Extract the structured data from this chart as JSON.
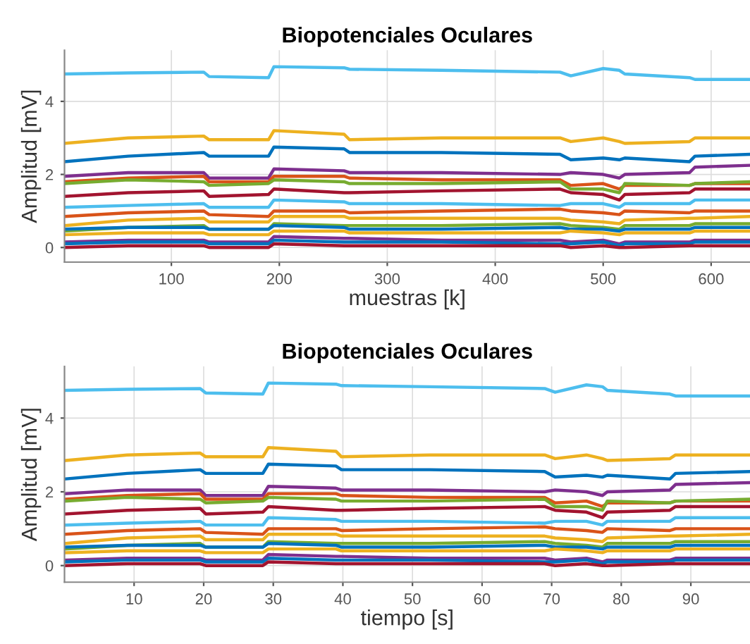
{
  "chart_data": [
    {
      "type": "line",
      "title": "Biopotenciales Oculares",
      "xlabel": "muestras [k]",
      "ylabel": "Amplitud [mV]",
      "xlim": [
        1,
        636
      ],
      "xticks": [
        100,
        200,
        300,
        400,
        500,
        600
      ],
      "ylim": [
        -0.4,
        5.4
      ],
      "yticks": [
        0,
        2,
        4
      ],
      "grid": true,
      "legend": false,
      "x": [
        1,
        60,
        130,
        135,
        190,
        195,
        260,
        265,
        350,
        460,
        470,
        500,
        515,
        520,
        580,
        585,
        636
      ],
      "series": [
        {
          "color": "#4dbeee",
          "values": [
            4.75,
            4.78,
            4.8,
            4.68,
            4.65,
            4.95,
            4.92,
            4.88,
            4.85,
            4.8,
            4.7,
            4.9,
            4.85,
            4.75,
            4.65,
            4.6,
            4.6
          ]
        },
        {
          "color": "#edb120",
          "values": [
            2.85,
            3.0,
            3.05,
            2.95,
            2.95,
            3.2,
            3.1,
            2.95,
            3.0,
            3.0,
            2.9,
            3.0,
            2.9,
            2.85,
            2.9,
            3.0,
            3.0
          ]
        },
        {
          "color": "#0072bd",
          "values": [
            2.35,
            2.5,
            2.6,
            2.5,
            2.5,
            2.75,
            2.7,
            2.6,
            2.6,
            2.55,
            2.4,
            2.45,
            2.4,
            2.45,
            2.35,
            2.5,
            2.55
          ]
        },
        {
          "color": "#7e2f8e",
          "values": [
            1.95,
            2.05,
            2.05,
            1.9,
            1.9,
            2.15,
            2.1,
            2.05,
            2.05,
            2.0,
            2.05,
            2.0,
            1.9,
            2.0,
            2.05,
            2.2,
            2.25
          ]
        },
        {
          "color": "#d95319",
          "values": [
            1.8,
            1.9,
            1.95,
            1.8,
            1.8,
            1.95,
            1.95,
            1.9,
            1.85,
            1.85,
            1.7,
            1.75,
            1.6,
            1.7,
            1.7,
            1.75,
            1.75
          ]
        },
        {
          "color": "#77ac30",
          "values": [
            1.75,
            1.85,
            1.8,
            1.7,
            1.75,
            1.85,
            1.8,
            1.75,
            1.75,
            1.8,
            1.6,
            1.6,
            1.5,
            1.75,
            1.7,
            1.75,
            1.8
          ]
        },
        {
          "color": "#a2142f",
          "values": [
            1.4,
            1.5,
            1.55,
            1.4,
            1.45,
            1.6,
            1.5,
            1.5,
            1.55,
            1.6,
            1.5,
            1.45,
            1.3,
            1.45,
            1.5,
            1.6,
            1.6
          ]
        },
        {
          "color": "#4dbeee",
          "values": [
            1.1,
            1.15,
            1.2,
            1.1,
            1.1,
            1.3,
            1.25,
            1.2,
            1.2,
            1.15,
            1.2,
            1.2,
            1.1,
            1.2,
            1.2,
            1.3,
            1.3
          ]
        },
        {
          "color": "#d95319",
          "values": [
            0.85,
            0.95,
            1.0,
            0.9,
            0.85,
            1.0,
            1.0,
            0.95,
            1.0,
            1.05,
            1.0,
            0.95,
            0.9,
            1.0,
            0.95,
            1.0,
            1.0
          ]
        },
        {
          "color": "#edb120",
          "values": [
            0.6,
            0.75,
            0.8,
            0.7,
            0.7,
            0.85,
            0.85,
            0.8,
            0.8,
            0.8,
            0.75,
            0.7,
            0.65,
            0.75,
            0.8,
            0.8,
            0.85
          ]
        },
        {
          "color": "#77ac30",
          "values": [
            0.45,
            0.55,
            0.6,
            0.5,
            0.5,
            0.65,
            0.6,
            0.6,
            0.6,
            0.65,
            0.6,
            0.55,
            0.5,
            0.6,
            0.6,
            0.65,
            0.65
          ]
        },
        {
          "color": "#0072bd",
          "values": [
            0.5,
            0.55,
            0.55,
            0.5,
            0.5,
            0.6,
            0.55,
            0.5,
            0.5,
            0.55,
            0.5,
            0.5,
            0.45,
            0.5,
            0.5,
            0.55,
            0.55
          ]
        },
        {
          "color": "#edb120",
          "values": [
            0.35,
            0.4,
            0.4,
            0.35,
            0.35,
            0.45,
            0.45,
            0.4,
            0.4,
            0.4,
            0.45,
            0.4,
            0.35,
            0.4,
            0.4,
            0.45,
            0.45
          ]
        },
        {
          "color": "#7e2f8e",
          "values": [
            0.15,
            0.2,
            0.2,
            0.15,
            0.15,
            0.3,
            0.25,
            0.25,
            0.2,
            0.2,
            0.15,
            0.2,
            0.1,
            0.15,
            0.15,
            0.2,
            0.2
          ]
        },
        {
          "color": "#0072bd",
          "values": [
            0.1,
            0.15,
            0.15,
            0.1,
            0.1,
            0.2,
            0.15,
            0.15,
            0.15,
            0.1,
            0.1,
            0.15,
            0.05,
            0.1,
            0.1,
            0.15,
            0.15
          ]
        },
        {
          "color": "#a2142f",
          "values": [
            0.0,
            0.05,
            0.05,
            0.0,
            0.0,
            0.1,
            0.05,
            0.05,
            0.05,
            0.05,
            0.0,
            0.05,
            0.0,
            0.0,
            0.05,
            0.05,
            0.05
          ]
        }
      ]
    },
    {
      "type": "line",
      "title": "Biopotenciales Oculares",
      "xlabel": "tiempo [s]",
      "ylabel": "Amplitud [mV]",
      "xlim": [
        0,
        98.5
      ],
      "xticks": [
        10,
        20,
        30,
        40,
        50,
        60,
        70,
        80,
        90
      ],
      "ylim": [
        -0.45,
        5.4
      ],
      "yticks": [
        0,
        2,
        4
      ],
      "grid": true,
      "legend": false,
      "x": [
        0.2,
        9,
        19.5,
        20.3,
        28.5,
        29.3,
        39,
        39.8,
        52.5,
        69,
        70.5,
        75,
        77.3,
        78,
        87,
        87.8,
        98.5
      ],
      "series": [
        {
          "color": "#4dbeee",
          "values": [
            4.75,
            4.78,
            4.8,
            4.68,
            4.65,
            4.95,
            4.92,
            4.88,
            4.85,
            4.8,
            4.7,
            4.9,
            4.85,
            4.75,
            4.65,
            4.6,
            4.6
          ]
        },
        {
          "color": "#edb120",
          "values": [
            2.85,
            3.0,
            3.05,
            2.95,
            2.95,
            3.2,
            3.1,
            2.95,
            3.0,
            3.0,
            2.9,
            3.0,
            2.9,
            2.85,
            2.9,
            3.0,
            3.0
          ]
        },
        {
          "color": "#0072bd",
          "values": [
            2.35,
            2.5,
            2.6,
            2.5,
            2.5,
            2.75,
            2.7,
            2.6,
            2.6,
            2.55,
            2.4,
            2.45,
            2.4,
            2.45,
            2.35,
            2.5,
            2.55
          ]
        },
        {
          "color": "#7e2f8e",
          "values": [
            1.95,
            2.05,
            2.05,
            1.9,
            1.9,
            2.15,
            2.1,
            2.05,
            2.05,
            2.0,
            2.05,
            2.0,
            1.9,
            2.0,
            2.05,
            2.2,
            2.25
          ]
        },
        {
          "color": "#d95319",
          "values": [
            1.8,
            1.9,
            1.95,
            1.8,
            1.8,
            1.95,
            1.95,
            1.9,
            1.85,
            1.85,
            1.7,
            1.75,
            1.6,
            1.7,
            1.7,
            1.75,
            1.75
          ]
        },
        {
          "color": "#77ac30",
          "values": [
            1.75,
            1.85,
            1.8,
            1.7,
            1.75,
            1.85,
            1.8,
            1.75,
            1.75,
            1.8,
            1.6,
            1.6,
            1.5,
            1.75,
            1.7,
            1.75,
            1.8
          ]
        },
        {
          "color": "#a2142f",
          "values": [
            1.4,
            1.5,
            1.55,
            1.4,
            1.45,
            1.6,
            1.5,
            1.5,
            1.55,
            1.6,
            1.5,
            1.45,
            1.3,
            1.45,
            1.5,
            1.6,
            1.6
          ]
        },
        {
          "color": "#4dbeee",
          "values": [
            1.1,
            1.15,
            1.2,
            1.1,
            1.1,
            1.3,
            1.25,
            1.2,
            1.2,
            1.15,
            1.2,
            1.2,
            1.1,
            1.2,
            1.2,
            1.3,
            1.3
          ]
        },
        {
          "color": "#d95319",
          "values": [
            0.85,
            0.95,
            1.0,
            0.9,
            0.85,
            1.0,
            1.0,
            0.95,
            1.0,
            1.05,
            1.0,
            0.95,
            0.9,
            1.0,
            0.95,
            1.0,
            1.0
          ]
        },
        {
          "color": "#edb120",
          "values": [
            0.6,
            0.75,
            0.8,
            0.7,
            0.7,
            0.85,
            0.85,
            0.8,
            0.8,
            0.8,
            0.75,
            0.7,
            0.65,
            0.75,
            0.8,
            0.8,
            0.85
          ]
        },
        {
          "color": "#77ac30",
          "values": [
            0.45,
            0.55,
            0.6,
            0.5,
            0.5,
            0.65,
            0.6,
            0.6,
            0.6,
            0.65,
            0.6,
            0.55,
            0.5,
            0.6,
            0.6,
            0.65,
            0.65
          ]
        },
        {
          "color": "#0072bd",
          "values": [
            0.5,
            0.55,
            0.55,
            0.5,
            0.5,
            0.6,
            0.55,
            0.5,
            0.5,
            0.55,
            0.5,
            0.5,
            0.45,
            0.5,
            0.5,
            0.55,
            0.55
          ]
        },
        {
          "color": "#edb120",
          "values": [
            0.35,
            0.4,
            0.4,
            0.35,
            0.35,
            0.45,
            0.45,
            0.4,
            0.4,
            0.4,
            0.45,
            0.4,
            0.35,
            0.4,
            0.4,
            0.45,
            0.45
          ]
        },
        {
          "color": "#7e2f8e",
          "values": [
            0.15,
            0.2,
            0.2,
            0.15,
            0.15,
            0.3,
            0.25,
            0.25,
            0.2,
            0.2,
            0.15,
            0.2,
            0.1,
            0.15,
            0.15,
            0.2,
            0.2
          ]
        },
        {
          "color": "#0072bd",
          "values": [
            0.1,
            0.15,
            0.15,
            0.1,
            0.1,
            0.2,
            0.15,
            0.15,
            0.15,
            0.1,
            0.1,
            0.15,
            0.05,
            0.1,
            0.1,
            0.15,
            0.15
          ]
        },
        {
          "color": "#a2142f",
          "values": [
            0.0,
            0.05,
            0.05,
            0.0,
            0.0,
            0.1,
            0.05,
            0.05,
            0.05,
            0.05,
            0.0,
            0.05,
            0.0,
            0.0,
            0.05,
            0.05,
            0.05
          ]
        }
      ]
    }
  ]
}
